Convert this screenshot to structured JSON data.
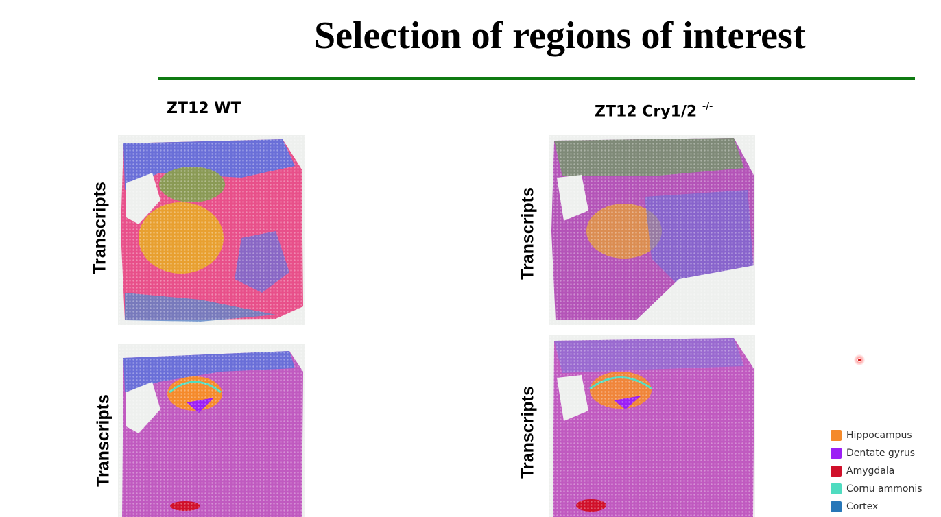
{
  "slide": {
    "title": "Selection of regions of interest"
  },
  "columns": [
    {
      "label": "ZT12 WT",
      "sup": ""
    },
    {
      "label": "ZT12 Cry1/2 ",
      "sup": "-/-"
    }
  ],
  "row_label": "Transcripts",
  "legend": [
    {
      "label": "Hippocampus",
      "color": "#f58a2b"
    },
    {
      "label": "Dentate gyrus",
      "color": "#9c1ff5"
    },
    {
      "label": "Amygdala",
      "color": "#d0102a"
    },
    {
      "label": "Cornu ammonis",
      "color": "#4fdcc0"
    },
    {
      "label": "Cortex",
      "color": "#2877b8"
    }
  ],
  "colors": {
    "accent_rule": "#0f7a12",
    "spot_magenta": "#c05ac0",
    "spot_pink": "#e8508a",
    "spot_blue": "#6a6fd8",
    "spot_olive": "#8a9a55",
    "spot_orange": "#e8a030"
  }
}
